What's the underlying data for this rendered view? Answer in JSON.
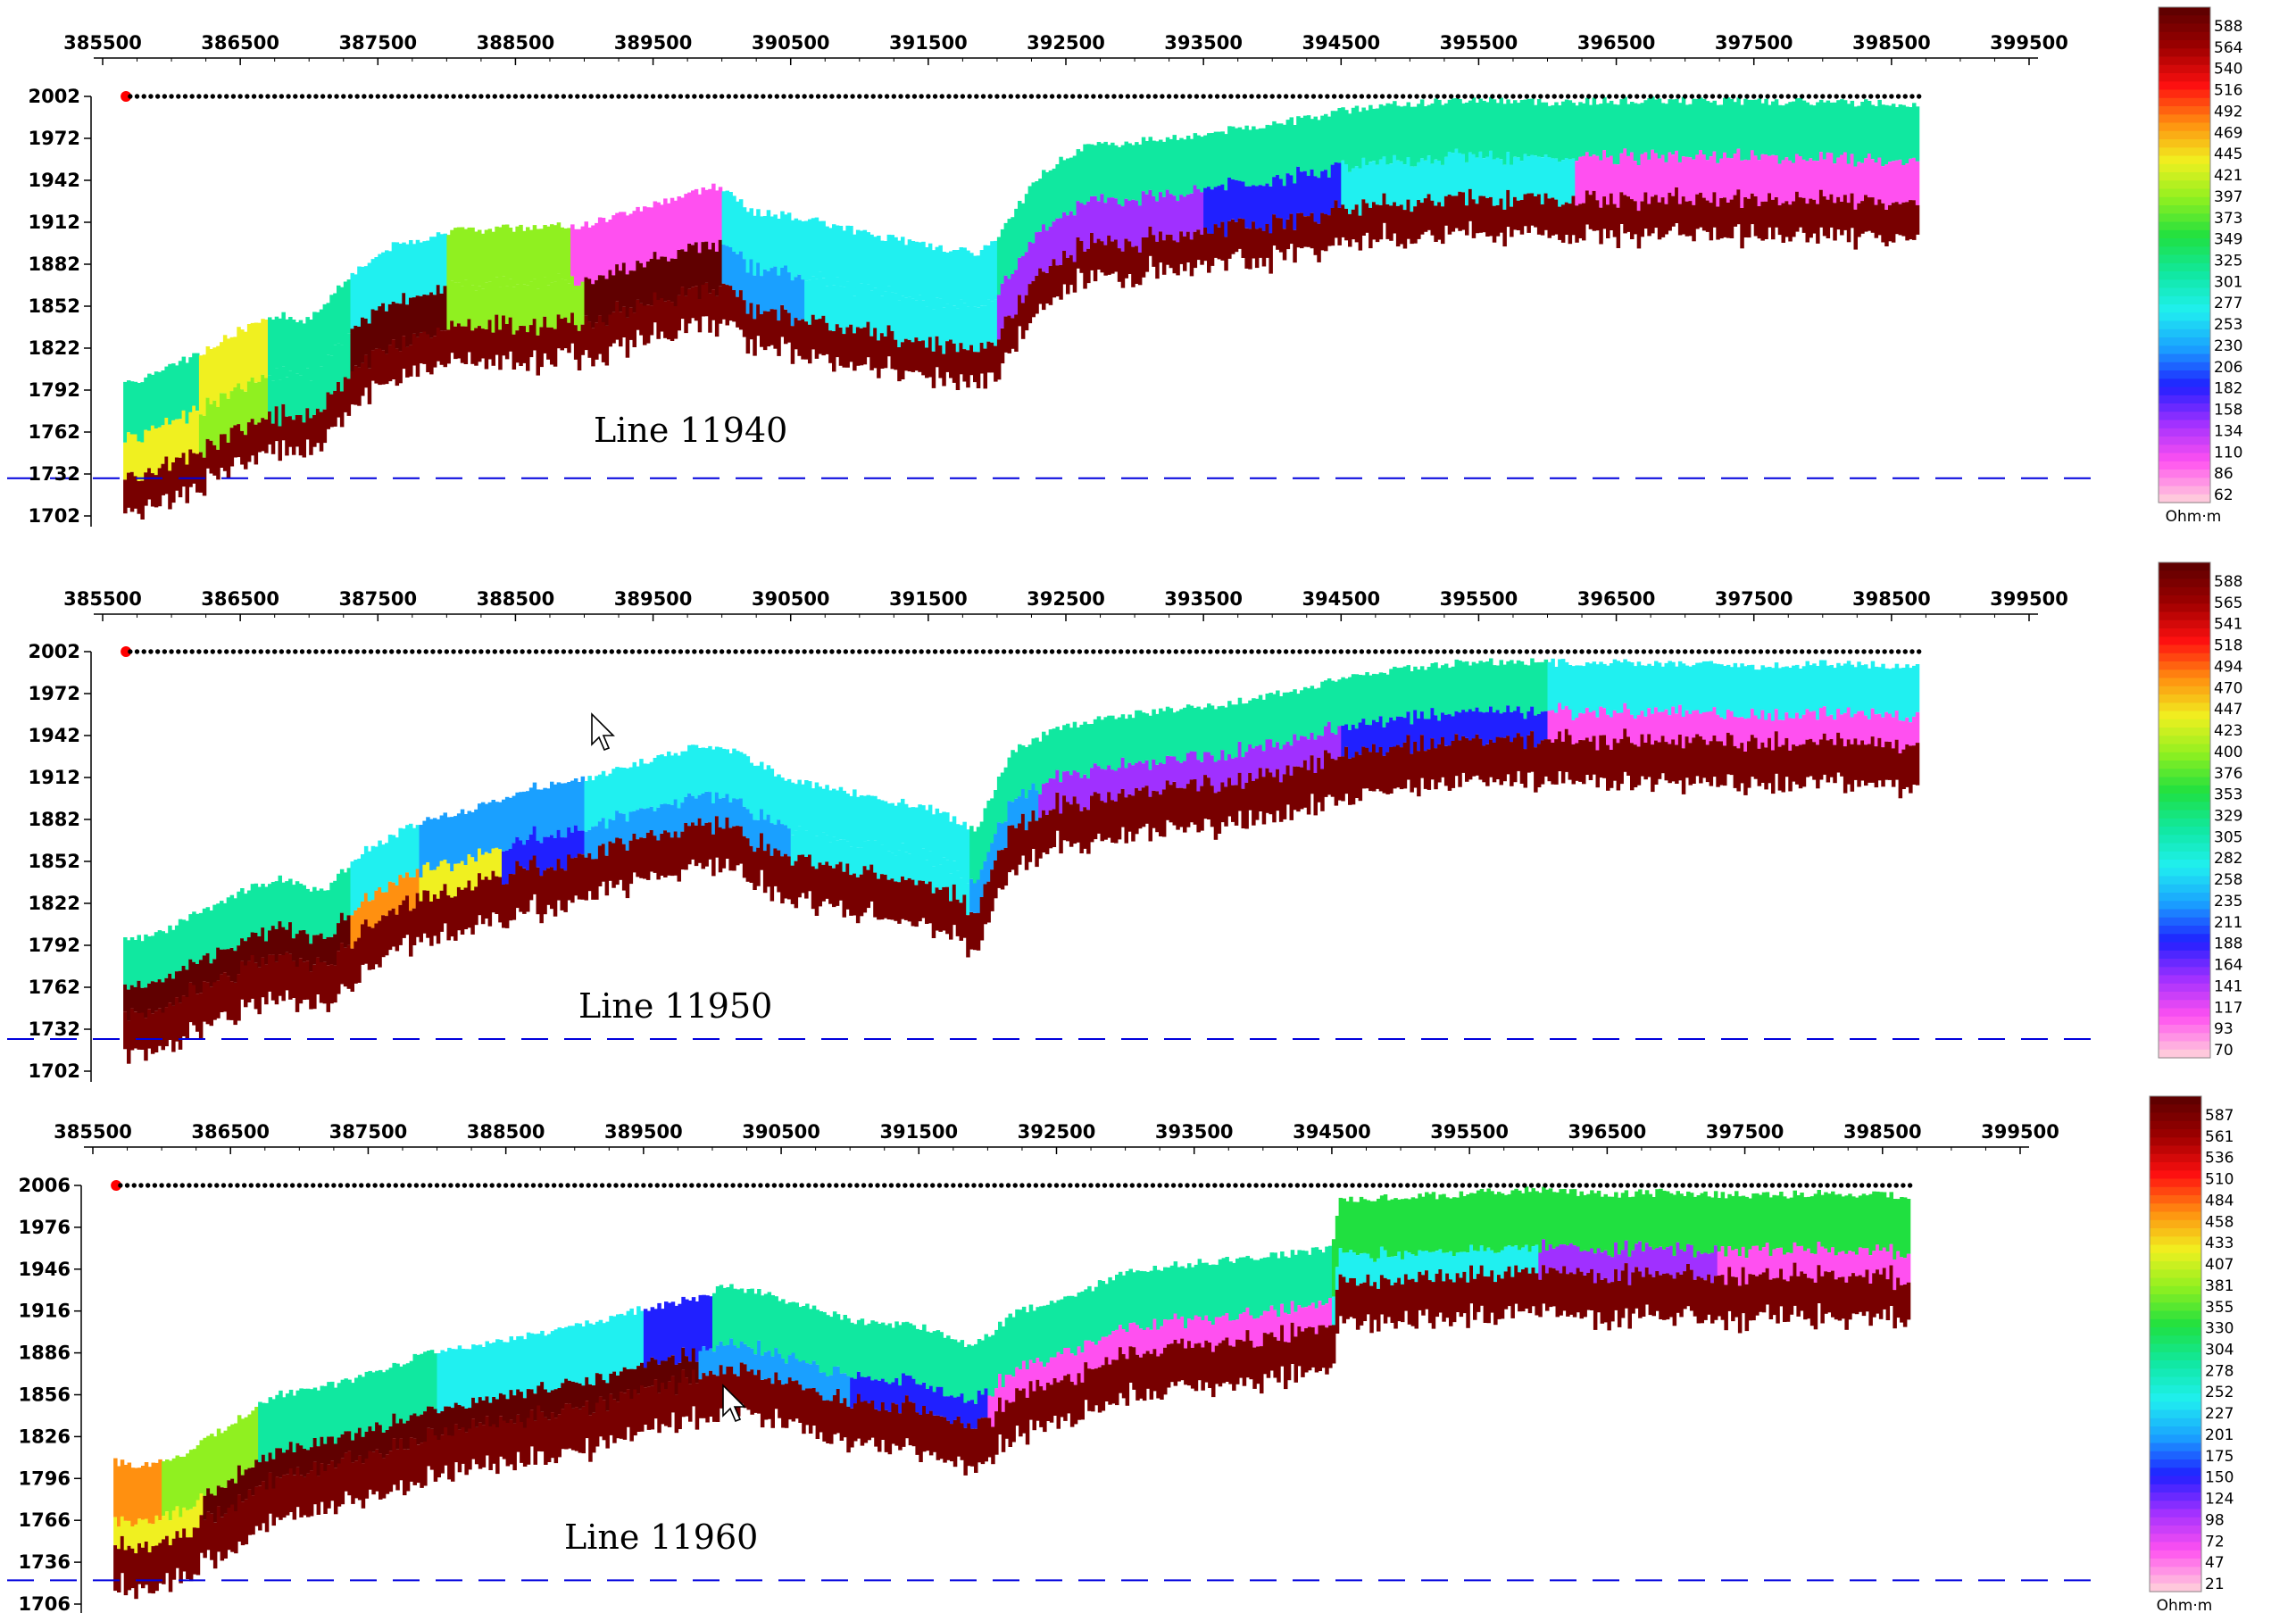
{
  "colors": {
    "ramp": [
      "#ffc8dc",
      "#ff50f0",
      "#a030ff",
      "#2020ff",
      "#1aa0ff",
      "#20f0f0",
      "#10e8a0",
      "#20e040",
      "#90f020",
      "#f0f020",
      "#ff9010",
      "#ff1010",
      "#a00000",
      "#600000"
    ],
    "base": "#780000",
    "guide": "#0000dd",
    "marker": "#ff0000"
  },
  "cursor_icon": "arrow-cursor-icon",
  "chart_data": [
    {
      "type": "heatmap",
      "label": "Line 11940",
      "x_ticks": [
        "385500",
        "386500",
        "387500",
        "388500",
        "389500",
        "390500",
        "391500",
        "392500",
        "393500",
        "394500",
        "395500",
        "396500",
        "397500",
        "398500",
        "399500"
      ],
      "y_ticks": [
        "2002",
        "1972",
        "1942",
        "1912",
        "1882",
        "1852",
        "1822",
        "1792",
        "1762",
        "1732",
        "1702"
      ],
      "xlim": [
        385500,
        399500
      ],
      "ylim": [
        1702,
        2002
      ],
      "dashed_level": 1729,
      "colorbar": {
        "labels": [
          "588",
          "564",
          "540",
          "516",
          "492",
          "469",
          "445",
          "421",
          "397",
          "373",
          "349",
          "325",
          "301",
          "277",
          "253",
          "230",
          "206",
          "182",
          "158",
          "134",
          "110",
          "86",
          "62"
        ],
        "unit": "Ohm·m"
      },
      "surface": [
        [
          385650,
          1795
        ],
        [
          385900,
          1805
        ],
        [
          386200,
          1818
        ],
        [
          386500,
          1835
        ],
        [
          386800,
          1845
        ],
        [
          387000,
          1842
        ],
        [
          387300,
          1875
        ],
        [
          387600,
          1895
        ],
        [
          388000,
          1905
        ],
        [
          388500,
          1908
        ],
        [
          389000,
          1910
        ],
        [
          389500,
          1925
        ],
        [
          389850,
          1935
        ],
        [
          390000,
          1938
        ],
        [
          390200,
          1920
        ],
        [
          390600,
          1915
        ],
        [
          391000,
          1905
        ],
        [
          391500,
          1895
        ],
        [
          391850,
          1890
        ],
        [
          392000,
          1900
        ],
        [
          392300,
          1945
        ],
        [
          392600,
          1965
        ],
        [
          393000,
          1970
        ],
        [
          393500,
          1975
        ],
        [
          393800,
          1980
        ],
        [
          394200,
          1985
        ],
        [
          394600,
          1993
        ],
        [
          395000,
          1997
        ],
        [
          395500,
          2000
        ],
        [
          396000,
          1998
        ],
        [
          396500,
          1999
        ],
        [
          397000,
          1999
        ],
        [
          397500,
          1998
        ],
        [
          398000,
          1998
        ],
        [
          398700,
          1997
        ]
      ],
      "layers": [
        {
          "depth": 40,
          "segments": [
            [
              385650,
              386200,
              "#10e8a0"
            ],
            [
              386200,
              386700,
              "#f0f020"
            ],
            [
              386700,
              387300,
              "#10e8a0"
            ],
            [
              387300,
              388000,
              "#20f0f0"
            ],
            [
              388000,
              388900,
              "#90f020"
            ],
            [
              388900,
              390000,
              "#ff50f0"
            ],
            [
              390000,
              392000,
              "#20f0f0"
            ],
            [
              392000,
              396200,
              "#10e8a0"
            ],
            [
              396200,
              398700,
              "#10e8a0"
            ]
          ]
        },
        {
          "depth": 30,
          "segments": [
            [
              385650,
              386200,
              "#f0f020"
            ],
            [
              386200,
              386700,
              "#90f020"
            ],
            [
              386700,
              387300,
              "#10e8a0"
            ],
            [
              387300,
              388000,
              "#600000"
            ],
            [
              388000,
              389000,
              "#90f020"
            ],
            [
              389000,
              390000,
              "#600000"
            ],
            [
              390000,
              390600,
              "#1aa0ff"
            ],
            [
              390600,
              392000,
              "#20f0f0"
            ],
            [
              392000,
              393500,
              "#a030ff"
            ],
            [
              393500,
              394500,
              "#2020ff"
            ],
            [
              394500,
              396200,
              "#20f0f0"
            ],
            [
              396200,
              398700,
              "#ff50f0"
            ]
          ]
        },
        {
          "depth": 25,
          "segments": [
            [
              385650,
              398700,
              "#780000"
            ]
          ]
        }
      ]
    },
    {
      "type": "heatmap",
      "label": "Line 11950",
      "x_ticks": [
        "385500",
        "386500",
        "387500",
        "388500",
        "389500",
        "390500",
        "391500",
        "392500",
        "393500",
        "394500",
        "395500",
        "396500",
        "397500",
        "398500",
        "399500"
      ],
      "y_ticks": [
        "2002",
        "1972",
        "1942",
        "1912",
        "1882",
        "1852",
        "1822",
        "1792",
        "1762",
        "1732",
        "1702"
      ],
      "xlim": [
        385500,
        399500
      ],
      "ylim": [
        1702,
        2002
      ],
      "dashed_level": 1725,
      "colorbar": {
        "labels": [
          "588",
          "565",
          "541",
          "518",
          "494",
          "470",
          "447",
          "423",
          "400",
          "376",
          "353",
          "329",
          "305",
          "282",
          "258",
          "235",
          "211",
          "188",
          "164",
          "141",
          "117",
          "93",
          "70"
        ],
        "unit": ""
      },
      "surface": [
        [
          385650,
          1795
        ],
        [
          385900,
          1800
        ],
        [
          386200,
          1815
        ],
        [
          386500,
          1830
        ],
        [
          386800,
          1840
        ],
        [
          387100,
          1830
        ],
        [
          387400,
          1860
        ],
        [
          387800,
          1880
        ],
        [
          388200,
          1890
        ],
        [
          388600,
          1905
        ],
        [
          389000,
          1910
        ],
        [
          389500,
          1925
        ],
        [
          389850,
          1935
        ],
        [
          390100,
          1930
        ],
        [
          390500,
          1910
        ],
        [
          391000,
          1900
        ],
        [
          391500,
          1890
        ],
        [
          391850,
          1875
        ],
        [
          392100,
          1930
        ],
        [
          392400,
          1945
        ],
        [
          392800,
          1955
        ],
        [
          393200,
          1960
        ],
        [
          393700,
          1965
        ],
        [
          394200,
          1975
        ],
        [
          394600,
          1985
        ],
        [
          395000,
          1990
        ],
        [
          395500,
          1995
        ],
        [
          396000,
          1994
        ],
        [
          396500,
          1995
        ],
        [
          397000,
          1993
        ],
        [
          397500,
          1992
        ],
        [
          398000,
          1993
        ],
        [
          398700,
          1992
        ]
      ],
      "layers": [
        {
          "depth": 35,
          "segments": [
            [
              385650,
              387300,
              "#10e8a0"
            ],
            [
              387300,
              387800,
              "#20f0f0"
            ],
            [
              387800,
              389000,
              "#1aa0ff"
            ],
            [
              389000,
              391800,
              "#20f0f0"
            ],
            [
              391800,
              392300,
              "#10e8a0"
            ],
            [
              392300,
              396000,
              "#10e8a0"
            ],
            [
              396000,
              398700,
              "#20f0f0"
            ]
          ]
        },
        {
          "depth": 20,
          "segments": [
            [
              385650,
              387300,
              "#600000"
            ],
            [
              387300,
              387800,
              "#ff9010"
            ],
            [
              387800,
              388400,
              "#f0f020"
            ],
            [
              388400,
              389000,
              "#2020ff"
            ],
            [
              389000,
              390500,
              "#1aa0ff"
            ],
            [
              390500,
              391800,
              "#20f0f0"
            ],
            [
              391800,
              392300,
              "#1aa0ff"
            ],
            [
              392300,
              394500,
              "#a030ff"
            ],
            [
              394500,
              396000,
              "#2020ff"
            ],
            [
              396000,
              398700,
              "#ff50f0"
            ]
          ]
        },
        {
          "depth": 30,
          "segments": [
            [
              385650,
              398700,
              "#780000"
            ]
          ]
        }
      ]
    },
    {
      "type": "heatmap",
      "label": "Line 11960",
      "x_ticks": [
        "385500",
        "386500",
        "387500",
        "388500",
        "389500",
        "390500",
        "391500",
        "392500",
        "393500",
        "394500",
        "395500",
        "396500",
        "397500",
        "398500",
        "399500"
      ],
      "y_ticks": [
        "2006",
        "1976",
        "1946",
        "1916",
        "1886",
        "1856",
        "1826",
        "1796",
        "1766",
        "1736",
        "1706"
      ],
      "xlim": [
        385500,
        399500
      ],
      "ylim": [
        1706,
        2006
      ],
      "dashed_level": 1723,
      "colorbar": {
        "labels": [
          "587",
          "561",
          "536",
          "510",
          "484",
          "458",
          "433",
          "407",
          "381",
          "355",
          "330",
          "304",
          "278",
          "252",
          "227",
          "201",
          "175",
          "150",
          "124",
          "98",
          "72",
          "47",
          "21"
        ],
        "unit": "Ohm·m"
      },
      "surface": [
        [
          385650,
          1808
        ],
        [
          385900,
          1805
        ],
        [
          386200,
          1815
        ],
        [
          386500,
          1835
        ],
        [
          386800,
          1855
        ],
        [
          387100,
          1860
        ],
        [
          387500,
          1870
        ],
        [
          387900,
          1885
        ],
        [
          388300,
          1892
        ],
        [
          388800,
          1900
        ],
        [
          389200,
          1910
        ],
        [
          389600,
          1920
        ],
        [
          389900,
          1925
        ],
        [
          390100,
          1935
        ],
        [
          390500,
          1925
        ],
        [
          391000,
          1910
        ],
        [
          391500,
          1905
        ],
        [
          391900,
          1890
        ],
        [
          392200,
          1915
        ],
        [
          392600,
          1925
        ],
        [
          393000,
          1945
        ],
        [
          393500,
          1950
        ],
        [
          394000,
          1955
        ],
        [
          394500,
          1960
        ],
        [
          394550,
          1995
        ],
        [
          395000,
          1998
        ],
        [
          395500,
          2000
        ],
        [
          396000,
          2003
        ],
        [
          396500,
          2000
        ],
        [
          397000,
          2001
        ],
        [
          397500,
          1999
        ],
        [
          398000,
          2000
        ],
        [
          398700,
          1998
        ]
      ],
      "layers": [
        {
          "depth": 40,
          "segments": [
            [
              385650,
              386000,
              "#ff9010"
            ],
            [
              386000,
              386700,
              "#90f020"
            ],
            [
              386700,
              388000,
              "#10e8a0"
            ],
            [
              388000,
              389500,
              "#20f0f0"
            ],
            [
              389500,
              390000,
              "#2020ff"
            ],
            [
              390000,
              392000,
              "#10e8a0"
            ],
            [
              392000,
              394500,
              "#10e8a0"
            ],
            [
              394500,
              398700,
              "#20e040"
            ]
          ]
        },
        {
          "depth": 18,
          "segments": [
            [
              385650,
              386300,
              "#f0f020"
            ],
            [
              386300,
              389900,
              "#600000"
            ],
            [
              389900,
              391000,
              "#1aa0ff"
            ],
            [
              391000,
              392000,
              "#2020ff"
            ],
            [
              392000,
              394500,
              "#ff50f0"
            ],
            [
              394500,
              396000,
              "#20f0f0"
            ],
            [
              396000,
              397300,
              "#a030ff"
            ],
            [
              397300,
              398700,
              "#ff50f0"
            ]
          ]
        },
        {
          "depth": 30,
          "segments": [
            [
              385650,
              398700,
              "#780000"
            ]
          ]
        }
      ]
    }
  ]
}
